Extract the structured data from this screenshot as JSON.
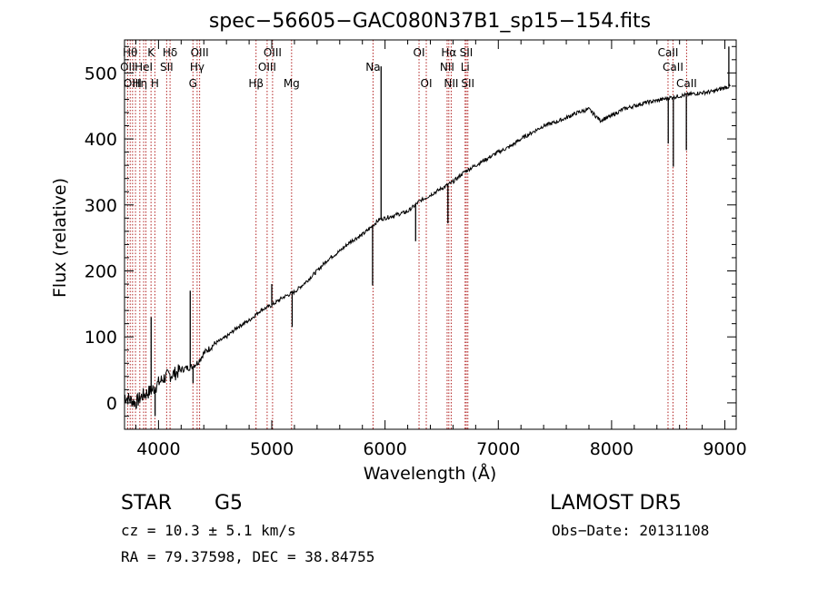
{
  "chart_data": {
    "type": "line",
    "title": "spec−56605−GAC080N37B1_sp15−154.fits",
    "xlabel": "Wavelength (Å)",
    "ylabel": "Flux (relative)",
    "xlim": [
      3700,
      9100
    ],
    "ylim": [
      -40,
      550
    ],
    "x_ticks": [
      4000,
      5000,
      6000,
      7000,
      8000,
      9000
    ],
    "y_ticks": [
      0,
      100,
      200,
      300,
      400,
      500
    ],
    "grid": false,
    "series": [
      {
        "x": [
          3700,
          3750,
          3800,
          3850,
          3900,
          3950,
          4000,
          4050,
          4100,
          4150,
          4200,
          4250,
          4300,
          4350,
          4400,
          4500,
          4600,
          4700,
          4800,
          4900,
          5000,
          5100,
          5200,
          5300,
          5400,
          5500,
          5600,
          5700,
          5800,
          5850,
          5900,
          5950,
          6000,
          6100,
          6200,
          6300,
          6400,
          6500,
          6600,
          6700,
          6800,
          6900,
          7000,
          7100,
          7200,
          7300,
          7400,
          7500,
          7600,
          7700,
          7800,
          7900,
          8000,
          8100,
          8200,
          8300,
          8400,
          8500,
          8600,
          8700,
          8800,
          8900,
          9000,
          9050
        ],
        "y": [
          10,
          5,
          0,
          10,
          15,
          20,
          30,
          38,
          42,
          45,
          50,
          53,
          55,
          62,
          75,
          90,
          100,
          115,
          125,
          140,
          148,
          160,
          168,
          183,
          200,
          218,
          230,
          245,
          255,
          262,
          270,
          278,
          280,
          285,
          290,
          305,
          315,
          325,
          335,
          350,
          360,
          370,
          380,
          388,
          400,
          410,
          420,
          425,
          432,
          440,
          445,
          428,
          435,
          445,
          450,
          455,
          458,
          462,
          465,
          468,
          470,
          472,
          478,
          480
        ]
      }
    ],
    "spikes": [
      {
        "x": 3935,
        "y": 130
      },
      {
        "x": 4280,
        "y": 170
      },
      {
        "x": 5000,
        "y": 180
      },
      {
        "x": 5965,
        "y": 510
      },
      {
        "x": 9035,
        "y": 540
      }
    ],
    "dips": [
      {
        "x": 3970,
        "y": -20
      },
      {
        "x": 4305,
        "y": 30
      },
      {
        "x": 5180,
        "y": 115
      },
      {
        "x": 5890,
        "y": 178
      },
      {
        "x": 6270,
        "y": 245
      },
      {
        "x": 6555,
        "y": 272
      },
      {
        "x": 8500,
        "y": 393
      },
      {
        "x": 8545,
        "y": 358
      },
      {
        "x": 8660,
        "y": 383
      }
    ],
    "emission_absorption_lines": [
      {
        "x": 3727,
        "row": 1,
        "label": "OII"
      },
      {
        "x": 3750,
        "row": 0,
        "label": "Hθ"
      },
      {
        "x": 3771,
        "row": 2,
        "label": "OIII"
      },
      {
        "x": 3797,
        "row": 0,
        "label": ""
      },
      {
        "x": 3835,
        "row": 2,
        "label": "Hη"
      },
      {
        "x": 3869,
        "row": 1,
        "label": "HeI"
      },
      {
        "x": 3889,
        "row": 0,
        "label": ""
      },
      {
        "x": 3934,
        "row": 0,
        "label": "K"
      },
      {
        "x": 3968,
        "row": 2,
        "label": "H"
      },
      {
        "x": 4072,
        "row": 1,
        "label": "SII"
      },
      {
        "x": 4102,
        "row": 0,
        "label": "Hδ"
      },
      {
        "x": 4304,
        "row": 2,
        "label": "G"
      },
      {
        "x": 4341,
        "row": 1,
        "label": "Hγ"
      },
      {
        "x": 4363,
        "row": 0,
        "label": "OIII"
      },
      {
        "x": 4861,
        "row": 2,
        "label": "Hβ"
      },
      {
        "x": 4959,
        "row": 1,
        "label": "OIII"
      },
      {
        "x": 5007,
        "row": 0,
        "label": "OIII"
      },
      {
        "x": 5175,
        "row": 2,
        "label": "Mg"
      },
      {
        "x": 5894,
        "row": 1,
        "label": "Na"
      },
      {
        "x": 6300,
        "row": 0,
        "label": "OI"
      },
      {
        "x": 6364,
        "row": 2,
        "label": "OI"
      },
      {
        "x": 6548,
        "row": 1,
        "label": "NII"
      },
      {
        "x": 6563,
        "row": 0,
        "label": "Hα"
      },
      {
        "x": 6584,
        "row": 2,
        "label": "NII"
      },
      {
        "x": 6707,
        "row": 1,
        "label": "Li"
      },
      {
        "x": 6717,
        "row": 0,
        "label": "SII"
      },
      {
        "x": 6731,
        "row": 2,
        "label": "SII"
      },
      {
        "x": 8498,
        "row": 0,
        "label": "CaII"
      },
      {
        "x": 8542,
        "row": 1,
        "label": "CaII"
      },
      {
        "x": 8662,
        "row": 2,
        "label": "CaII"
      }
    ]
  },
  "info": {
    "object_class": "STAR",
    "subclass": "G5",
    "survey": "LAMOST DR5",
    "redshift": "cz = 10.3 ± 5.1 km/s",
    "obs_date": "Obs−Date: 20131108",
    "coords": "RA =  79.37598, DEC =  38.84755"
  },
  "colors": {
    "spectrum": "#000000",
    "line_markers": "#b22222",
    "axes": "#000000"
  }
}
